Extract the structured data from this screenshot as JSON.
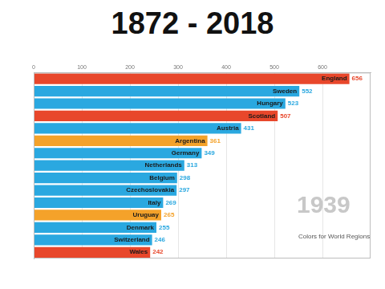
{
  "chart_data": {
    "type": "bar",
    "title": "1872 - 2018",
    "orientation": "horizontal",
    "categories": [
      "England",
      "Sweden",
      "Hungary",
      "Scotland",
      "Austria",
      "Argentina",
      "Germany",
      "Netherlands",
      "Belgium",
      "Czechoslovakia",
      "Italy",
      "Uruguay",
      "Denmark",
      "Switzerland",
      "Wales"
    ],
    "values": [
      656,
      552,
      523,
      507,
      431,
      361,
      349,
      313,
      298,
      297,
      269,
      265,
      255,
      246,
      242
    ],
    "colors": [
      "#e8472b",
      "#2aa8e0",
      "#2aa8e0",
      "#e8472b",
      "#2aa8e0",
      "#f4a22a",
      "#2aa8e0",
      "#2aa8e0",
      "#2aa8e0",
      "#2aa8e0",
      "#2aa8e0",
      "#f4a22a",
      "#2aa8e0",
      "#2aa8e0",
      "#e8472b"
    ],
    "xlim": [
      0,
      700
    ],
    "xticks": [
      0,
      100,
      200,
      300,
      400,
      500,
      600
    ],
    "grid": true,
    "data_labels": true,
    "tick_labels": "x",
    "annotations": [
      "1939",
      "Colors for World Regions"
    ]
  }
}
